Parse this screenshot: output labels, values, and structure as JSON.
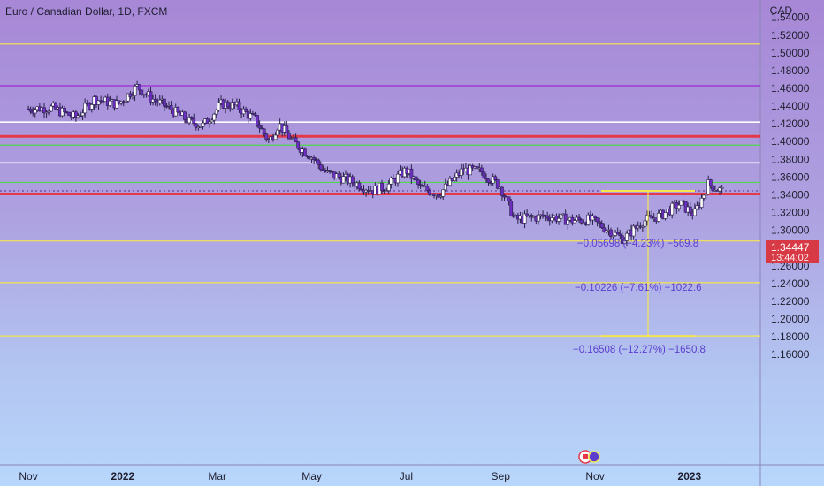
{
  "header": {
    "title": "Euro / Canadian Dollar, 1D, FXCM",
    "axis_unit": "CAD"
  },
  "price_tag": {
    "value": "1.34447",
    "countdown": "13:44:02"
  },
  "measurements": [
    {
      "text": "−0.05698 (−4.23%) −569.8",
      "y": 1.2836
    },
    {
      "text": "−0.10226 (−7.61%) −1022.6",
      "y": 1.2336
    },
    {
      "text": "−0.16508 (−12.27%) −1650.8",
      "y": 1.164
    }
  ],
  "colors": {
    "yellow": "#f5e64f",
    "red": "#e53947",
    "green": "#4cd94c",
    "white": "#ffffff",
    "purple": "#9a2ad0",
    "candle": "#6d2ec3",
    "text": "#1e1e2e",
    "annot": "#5b3ed0"
  },
  "chart_data": {
    "type": "candlestick",
    "title": "Euro / Canadian Dollar, 1D, FXCM",
    "ylabel": "CAD",
    "ylim": [
      1.15,
      1.55
    ],
    "y_ticks": [
      "1.54000",
      "1.52000",
      "1.50000",
      "1.48000",
      "1.46000",
      "1.44000",
      "1.42000",
      "1.40000",
      "1.38000",
      "1.36000",
      "1.34000",
      "1.32000",
      "1.30000",
      "1.28000",
      "1.26000",
      "1.24000",
      "1.22000",
      "1.20000",
      "1.18000",
      "1.16000"
    ],
    "x_ticks": [
      "Nov",
      "2022",
      "Mar",
      "May",
      "Jul",
      "Sep",
      "Nov",
      "2023"
    ],
    "x_tick_months": [
      0,
      2,
      4,
      6,
      8,
      10,
      12,
      14
    ],
    "x_range_months": [
      -0.6,
      15.5
    ],
    "close_series": [
      {
        "m": 0.0,
        "v": 1.437
      },
      {
        "m": 0.5,
        "v": 1.438
      },
      {
        "m": 1.0,
        "v": 1.427
      },
      {
        "m": 1.4,
        "v": 1.448
      },
      {
        "m": 1.9,
        "v": 1.442
      },
      {
        "m": 2.3,
        "v": 1.462
      },
      {
        "m": 2.6,
        "v": 1.449
      },
      {
        "m": 3.0,
        "v": 1.437
      },
      {
        "m": 3.4,
        "v": 1.423
      },
      {
        "m": 3.7,
        "v": 1.418
      },
      {
        "m": 4.1,
        "v": 1.443
      },
      {
        "m": 4.4,
        "v": 1.44
      },
      {
        "m": 4.8,
        "v": 1.425
      },
      {
        "m": 5.1,
        "v": 1.4
      },
      {
        "m": 5.3,
        "v": 1.42
      },
      {
        "m": 5.6,
        "v": 1.4
      },
      {
        "m": 6.0,
        "v": 1.383
      },
      {
        "m": 6.3,
        "v": 1.365
      },
      {
        "m": 6.8,
        "v": 1.356
      },
      {
        "m": 7.3,
        "v": 1.345
      },
      {
        "m": 7.6,
        "v": 1.35
      },
      {
        "m": 8.0,
        "v": 1.368
      },
      {
        "m": 8.3,
        "v": 1.348
      },
      {
        "m": 8.7,
        "v": 1.341
      },
      {
        "m": 9.2,
        "v": 1.368
      },
      {
        "m": 9.6,
        "v": 1.366
      },
      {
        "m": 10.0,
        "v": 1.349
      },
      {
        "m": 10.3,
        "v": 1.312
      },
      {
        "m": 10.6,
        "v": 1.314
      },
      {
        "m": 11.0,
        "v": 1.316
      },
      {
        "m": 11.5,
        "v": 1.311
      },
      {
        "m": 11.9,
        "v": 1.312
      },
      {
        "m": 12.3,
        "v": 1.3
      },
      {
        "m": 12.6,
        "v": 1.29
      },
      {
        "m": 13.0,
        "v": 1.31
      },
      {
        "m": 13.4,
        "v": 1.317
      },
      {
        "m": 13.8,
        "v": 1.33
      },
      {
        "m": 14.1,
        "v": 1.318
      },
      {
        "m": 14.4,
        "v": 1.352
      },
      {
        "m": 14.7,
        "v": 1.344
      }
    ],
    "horizontal_levels": [
      {
        "price": 1.51,
        "color": "yellow",
        "width": 1.2
      },
      {
        "price": 1.463,
        "color": "purple",
        "width": 1.2
      },
      {
        "price": 1.422,
        "color": "white",
        "width": 1.6
      },
      {
        "price": 1.406,
        "color": "red",
        "width": 3
      },
      {
        "price": 1.396,
        "color": "green",
        "width": 1.2
      },
      {
        "price": 1.376,
        "color": "white",
        "width": 1.6
      },
      {
        "price": 1.354,
        "color": "green",
        "width": 1.2
      },
      {
        "price": 1.341,
        "color": "red",
        "width": 3
      },
      {
        "price": 1.288,
        "color": "yellow",
        "width": 1.2
      },
      {
        "price": 1.241,
        "color": "yellow",
        "width": 1.2
      },
      {
        "price": 1.181,
        "color": "yellow",
        "width": 1.2
      }
    ],
    "last_price": 1.34447,
    "grid": false
  }
}
